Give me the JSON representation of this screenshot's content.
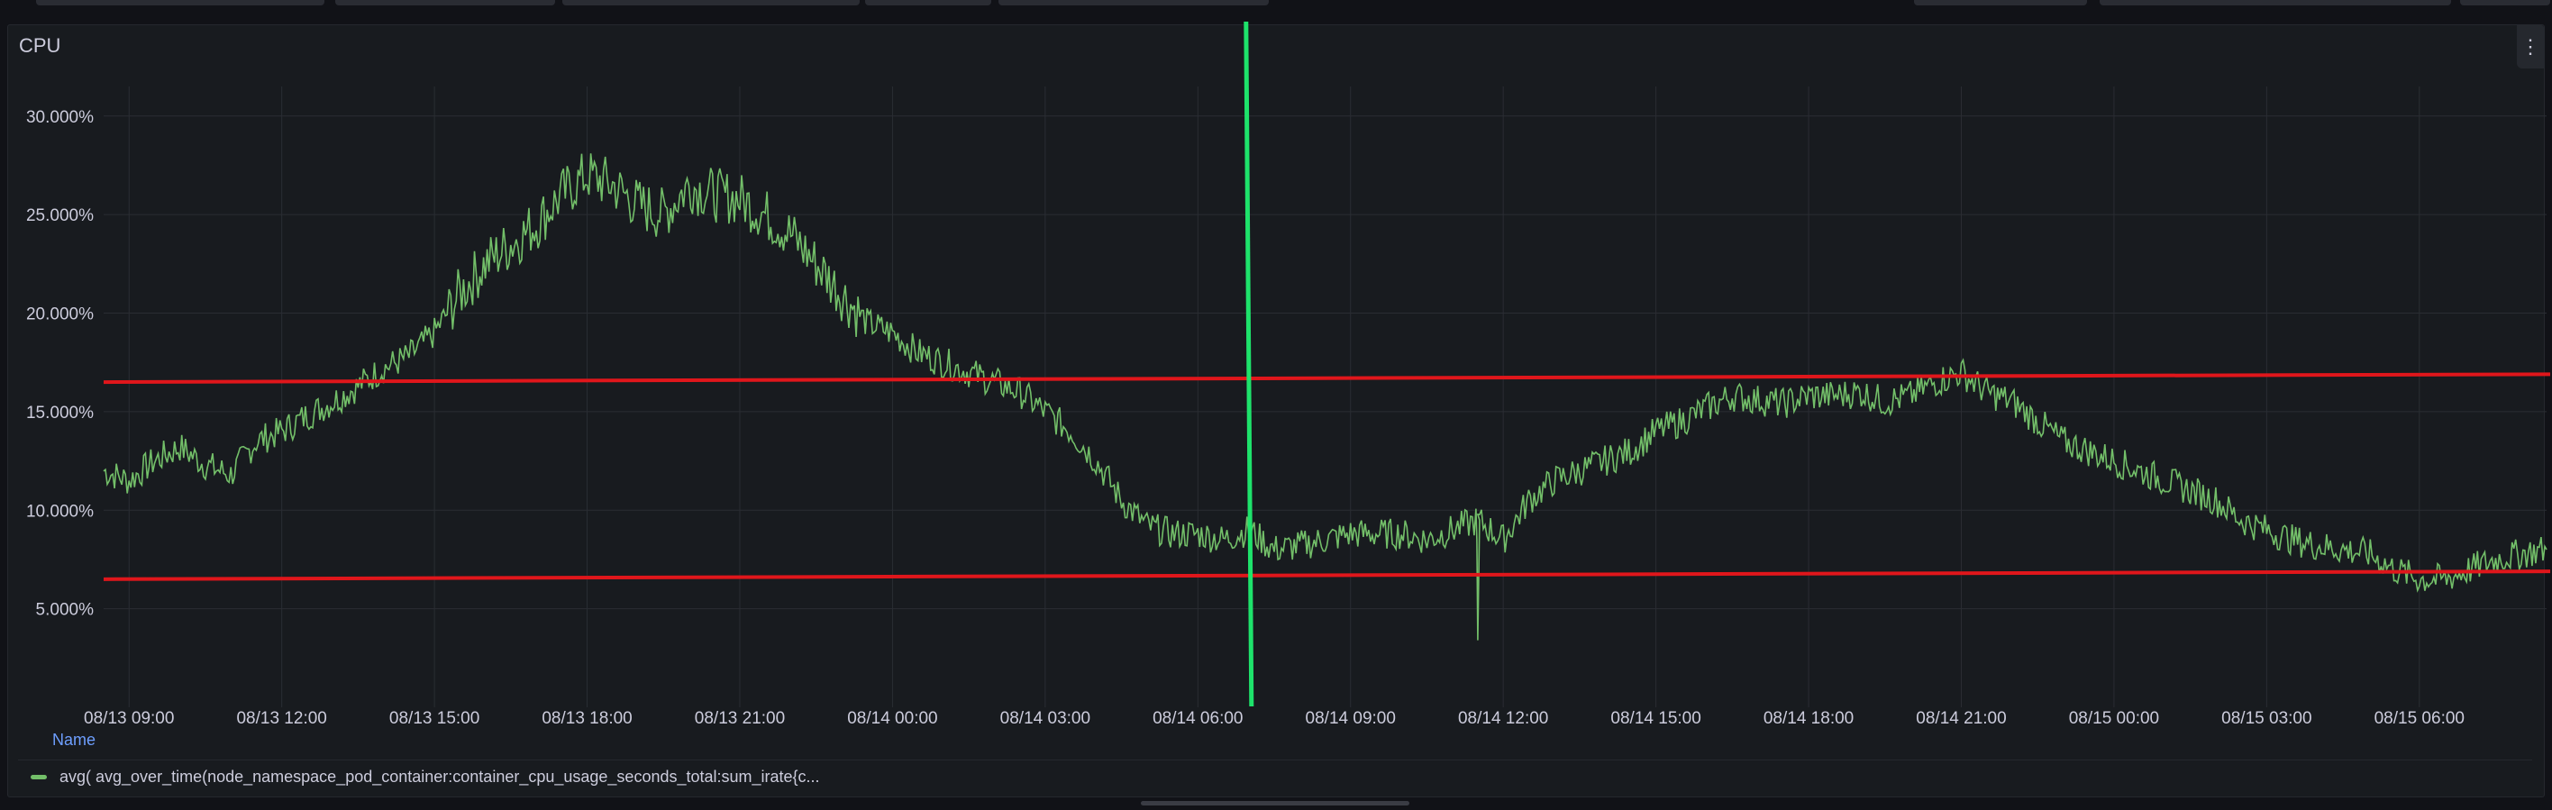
{
  "panel": {
    "title": "CPU",
    "menu_glyph": "⋮"
  },
  "legend": {
    "header": "Name",
    "series_label": "avg( avg_over_time(node_namespace_pod_container:container_cpu_usage_seconds_total:sum_irate{c..."
  },
  "colors": {
    "series": "#73bf69",
    "annotation_horizontal": "#e0161b",
    "annotation_vertical": "#1ee36b",
    "grid": "#2a2d33",
    "text": "#ccccdc"
  },
  "chart_data": {
    "type": "line",
    "title": "CPU",
    "xlabel": "",
    "ylabel": "",
    "ylim": [
      0,
      31.5
    ],
    "yticks": [
      5,
      10,
      15,
      20,
      25,
      30
    ],
    "ytick_labels": [
      "5.000%",
      "10.000%",
      "15.000%",
      "20.000%",
      "25.000%",
      "30.000%"
    ],
    "xlim": [
      "08/13 08:30",
      "08/15 08:30"
    ],
    "xtick_labels": [
      "08/13 09:00",
      "08/13 12:00",
      "08/13 15:00",
      "08/13 18:00",
      "08/13 21:00",
      "08/14 00:00",
      "08/14 03:00",
      "08/14 06:00",
      "08/14 09:00",
      "08/14 12:00",
      "08/14 15:00",
      "08/14 18:00",
      "08/14 21:00",
      "08/15 00:00",
      "08/15 03:00",
      "08/15 06:00"
    ],
    "grid": true,
    "legend_position": "bottom",
    "series": [
      {
        "name": "avg( avg_over_time(node_namespace_pod_container:container_cpu_usage_seconds_total:sum_irate{c...",
        "x": [
          "08/13 08:30",
          "08/13 09:00",
          "08/13 09:30",
          "08/13 10:00",
          "08/13 10:30",
          "08/13 11:00",
          "08/13 11:30",
          "08/13 12:00",
          "08/13 12:30",
          "08/13 13:00",
          "08/13 13:30",
          "08/13 14:00",
          "08/13 14:30",
          "08/13 15:00",
          "08/13 15:30",
          "08/13 16:00",
          "08/13 16:30",
          "08/13 17:00",
          "08/13 17:30",
          "08/13 18:00",
          "08/13 18:30",
          "08/13 19:00",
          "08/13 19:30",
          "08/13 20:00",
          "08/13 20:30",
          "08/13 21:00",
          "08/13 21:30",
          "08/13 22:00",
          "08/13 22:30",
          "08/13 23:00",
          "08/13 23:30",
          "08/14 00:00",
          "08/14 00:30",
          "08/14 01:00",
          "08/14 01:30",
          "08/14 02:00",
          "08/14 02:30",
          "08/14 03:00",
          "08/14 03:30",
          "08/14 04:00",
          "08/14 04:30",
          "08/14 05:00",
          "08/14 05:30",
          "08/14 06:00",
          "08/14 06:30",
          "08/14 07:00",
          "08/14 07:30",
          "08/14 08:00",
          "08/14 08:30",
          "08/14 09:00",
          "08/14 09:30",
          "08/14 10:00",
          "08/14 10:30",
          "08/14 11:00",
          "08/14 11:30",
          "08/14 12:00",
          "08/14 12:30",
          "08/14 13:00",
          "08/14 13:30",
          "08/14 14:00",
          "08/14 14:30",
          "08/14 15:00",
          "08/14 15:30",
          "08/14 16:00",
          "08/14 16:30",
          "08/14 17:00",
          "08/14 17:30",
          "08/14 18:00",
          "08/14 18:30",
          "08/14 19:00",
          "08/14 19:30",
          "08/14 20:00",
          "08/14 20:30",
          "08/14 21:00",
          "08/14 21:30",
          "08/14 22:00",
          "08/14 22:30",
          "08/14 23:00",
          "08/14 23:30",
          "08/15 00:00",
          "08/15 00:30",
          "08/15 01:00",
          "08/15 01:30",
          "08/15 02:00",
          "08/15 02:30",
          "08/15 03:00",
          "08/15 03:30",
          "08/15 04:00",
          "08/15 04:30",
          "08/15 05:00",
          "08/15 05:30",
          "08/15 06:00",
          "08/15 06:30",
          "08/15 07:00",
          "08/15 07:30",
          "08/15 08:00",
          "08/15 08:30"
        ],
        "values": [
          12.0,
          11.5,
          12.5,
          13.2,
          12.3,
          11.8,
          13.5,
          14.0,
          14.8,
          15.5,
          16.3,
          17.2,
          17.8,
          19.0,
          21.0,
          22.5,
          23.5,
          24.5,
          26.0,
          27.0,
          26.5,
          25.5,
          25.0,
          26.5,
          26.0,
          25.8,
          25.0,
          24.0,
          22.5,
          21.0,
          19.5,
          19.0,
          18.0,
          17.5,
          17.0,
          16.5,
          16.0,
          15.0,
          14.0,
          12.5,
          10.5,
          9.2,
          8.8,
          8.8,
          8.5,
          9.0,
          8.0,
          8.2,
          8.5,
          8.8,
          8.8,
          8.8,
          8.5,
          9.0,
          9.5,
          8.5,
          10.5,
          11.5,
          12.0,
          12.5,
          13.0,
          14.0,
          14.5,
          15.2,
          15.8,
          15.6,
          15.4,
          15.8,
          15.8,
          16.0,
          15.5,
          15.8,
          16.5,
          17.0,
          16.0,
          15.5,
          14.5,
          13.5,
          13.0,
          12.5,
          12.0,
          11.5,
          11.0,
          10.5,
          9.5,
          9.0,
          8.5,
          8.2,
          8.0,
          7.8,
          7.0,
          6.5,
          6.5,
          7.0,
          7.5,
          7.8,
          8.0
        ],
        "min_spike": {
          "x": "08/14 11:30",
          "value": 3.4
        }
      }
    ],
    "annotations": [
      {
        "type": "horizontal-line",
        "y_start": 16.5,
        "y_end": 16.9
      },
      {
        "type": "horizontal-line",
        "y_start": 6.5,
        "y_end": 6.9
      },
      {
        "type": "vertical-line",
        "x": "08/14 07:00"
      }
    ]
  }
}
